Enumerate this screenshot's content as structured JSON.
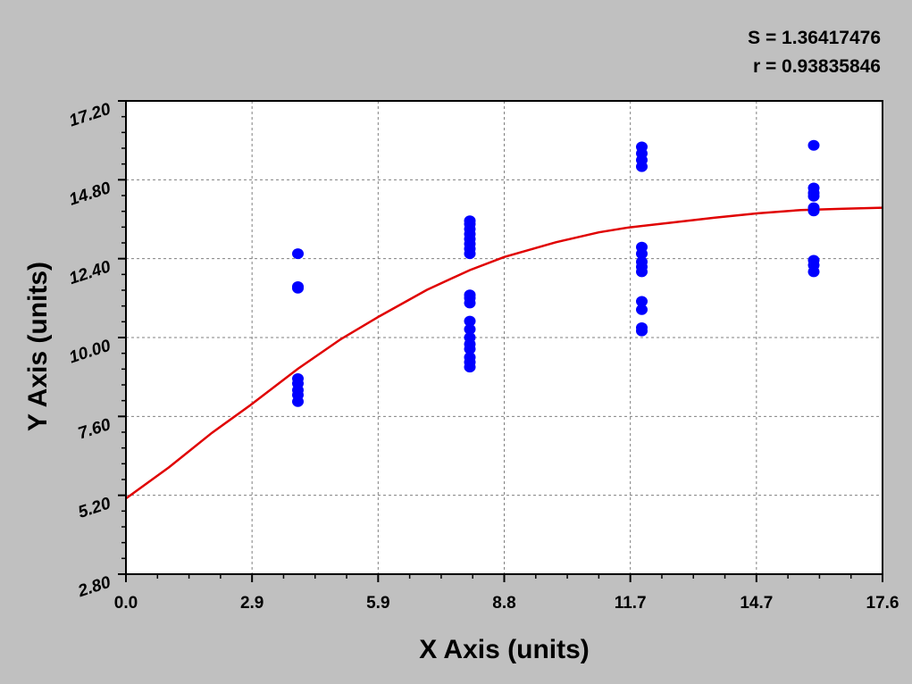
{
  "stats": {
    "s_label": "S = 1.36417476",
    "r_label": "r = 0.93835846"
  },
  "colors": {
    "background": "#c0c0c0",
    "plot_area": "#ffffff",
    "points": "#0000ff",
    "curve": "#e00000",
    "grid": "#808080"
  },
  "chart_data": {
    "type": "scatter",
    "title": "",
    "xlabel": "X Axis (units)",
    "ylabel": "Y Axis (units)",
    "xlim": [
      0.0,
      17.6
    ],
    "ylim": [
      2.8,
      17.2
    ],
    "x_ticks": [
      "0.0",
      "2.9",
      "5.9",
      "8.8",
      "11.7",
      "14.7",
      "17.6"
    ],
    "y_ticks": [
      "2.80",
      "5.20",
      "7.60",
      "10.00",
      "12.40",
      "14.80",
      "17.20"
    ],
    "grid": true,
    "series": [
      {
        "kind": "points",
        "points": [
          [
            4.0,
            12.55
          ],
          [
            4.0,
            11.55
          ],
          [
            4.0,
            11.5
          ],
          [
            4.0,
            8.75
          ],
          [
            4.0,
            8.6
          ],
          [
            4.0,
            8.4
          ],
          [
            4.0,
            8.25
          ],
          [
            4.0,
            8.05
          ],
          [
            8.0,
            13.55
          ],
          [
            8.0,
            13.45
          ],
          [
            8.0,
            13.3
          ],
          [
            8.0,
            13.15
          ],
          [
            8.0,
            13.0
          ],
          [
            8.0,
            12.85
          ],
          [
            8.0,
            12.7
          ],
          [
            8.0,
            12.55
          ],
          [
            8.0,
            11.3
          ],
          [
            8.0,
            11.2
          ],
          [
            8.0,
            11.05
          ],
          [
            8.0,
            10.5
          ],
          [
            8.0,
            10.25
          ],
          [
            8.0,
            10.0
          ],
          [
            8.0,
            9.8
          ],
          [
            8.0,
            9.65
          ],
          [
            8.0,
            9.4
          ],
          [
            8.0,
            9.25
          ],
          [
            8.0,
            9.1
          ],
          [
            12.0,
            15.8
          ],
          [
            12.0,
            15.6
          ],
          [
            12.0,
            15.4
          ],
          [
            12.0,
            15.2
          ],
          [
            12.0,
            12.75
          ],
          [
            12.0,
            12.55
          ],
          [
            12.0,
            12.3
          ],
          [
            12.0,
            12.15
          ],
          [
            12.0,
            12.0
          ],
          [
            12.0,
            11.1
          ],
          [
            12.0,
            10.85
          ],
          [
            12.0,
            10.3
          ],
          [
            12.0,
            10.2
          ],
          [
            16.0,
            15.85
          ],
          [
            16.0,
            14.55
          ],
          [
            16.0,
            14.4
          ],
          [
            16.0,
            14.3
          ],
          [
            16.0,
            13.95
          ],
          [
            16.0,
            13.85
          ],
          [
            16.0,
            12.35
          ],
          [
            16.0,
            12.2
          ],
          [
            16.0,
            12.0
          ]
        ]
      },
      {
        "kind": "fit_curve",
        "points": [
          [
            0.0,
            5.1
          ],
          [
            1.0,
            6.05
          ],
          [
            2.0,
            7.1
          ],
          [
            2.9,
            7.95
          ],
          [
            4.0,
            9.05
          ],
          [
            5.0,
            9.95
          ],
          [
            5.9,
            10.65
          ],
          [
            7.0,
            11.45
          ],
          [
            8.0,
            12.05
          ],
          [
            8.8,
            12.45
          ],
          [
            10.0,
            12.9
          ],
          [
            11.0,
            13.2
          ],
          [
            11.7,
            13.35
          ],
          [
            12.7,
            13.5
          ],
          [
            13.7,
            13.65
          ],
          [
            14.7,
            13.78
          ],
          [
            15.7,
            13.88
          ],
          [
            16.7,
            13.92
          ],
          [
            17.6,
            13.95
          ]
        ]
      }
    ]
  }
}
